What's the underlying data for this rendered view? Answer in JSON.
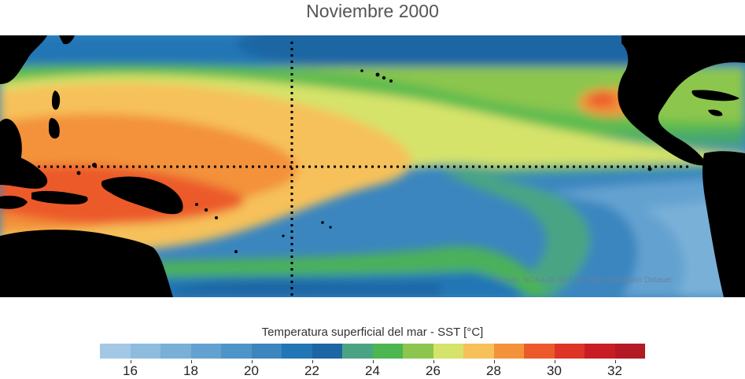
{
  "title": "Noviembre 2000",
  "credit": "Fuente: NOAA OI SST V2 High Resolution Dataset",
  "colorbar": {
    "title": "Temperatura superficial del mar - SST  [°C]",
    "min": 15,
    "max": 33,
    "step": 1,
    "colors": [
      "#a3c8e5",
      "#8dbcdf",
      "#79b0d8",
      "#63a2d0",
      "#4d94c8",
      "#3b86bf",
      "#2276b5",
      "#1c66a4",
      "#4aa484",
      "#4cb650",
      "#8cc64e",
      "#d5e36a",
      "#f6c15a",
      "#f3923a",
      "#ec5a2c",
      "#de3426",
      "#c81d25",
      "#b31a24"
    ],
    "tick_labels": [
      "16",
      "18",
      "20",
      "22",
      "24",
      "26",
      "28",
      "30",
      "32"
    ],
    "tick_values": [
      16,
      18,
      20,
      22,
      24,
      26,
      28,
      30,
      32
    ]
  },
  "map": {
    "land_color": "#000000",
    "grid_line_style": "dotted",
    "grid_color": "#000000"
  }
}
